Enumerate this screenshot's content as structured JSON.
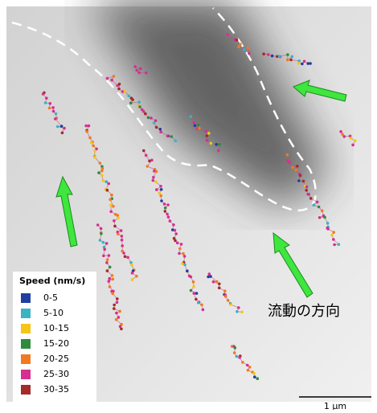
{
  "legend": {
    "title": "Speed (nm/s)",
    "items": [
      {
        "label": "0-5",
        "color": "#1f3fa0"
      },
      {
        "label": "5-10",
        "color": "#3bb3c3"
      },
      {
        "label": "10-15",
        "color": "#f5c518"
      },
      {
        "label": "15-20",
        "color": "#2e8b3e"
      },
      {
        "label": "20-25",
        "color": "#f07a22"
      },
      {
        "label": "25-30",
        "color": "#d62f8f"
      },
      {
        "label": "30-35",
        "color": "#a52a2a"
      }
    ]
  },
  "annotation": "流動の方向",
  "scale_bar": "1 μm"
}
